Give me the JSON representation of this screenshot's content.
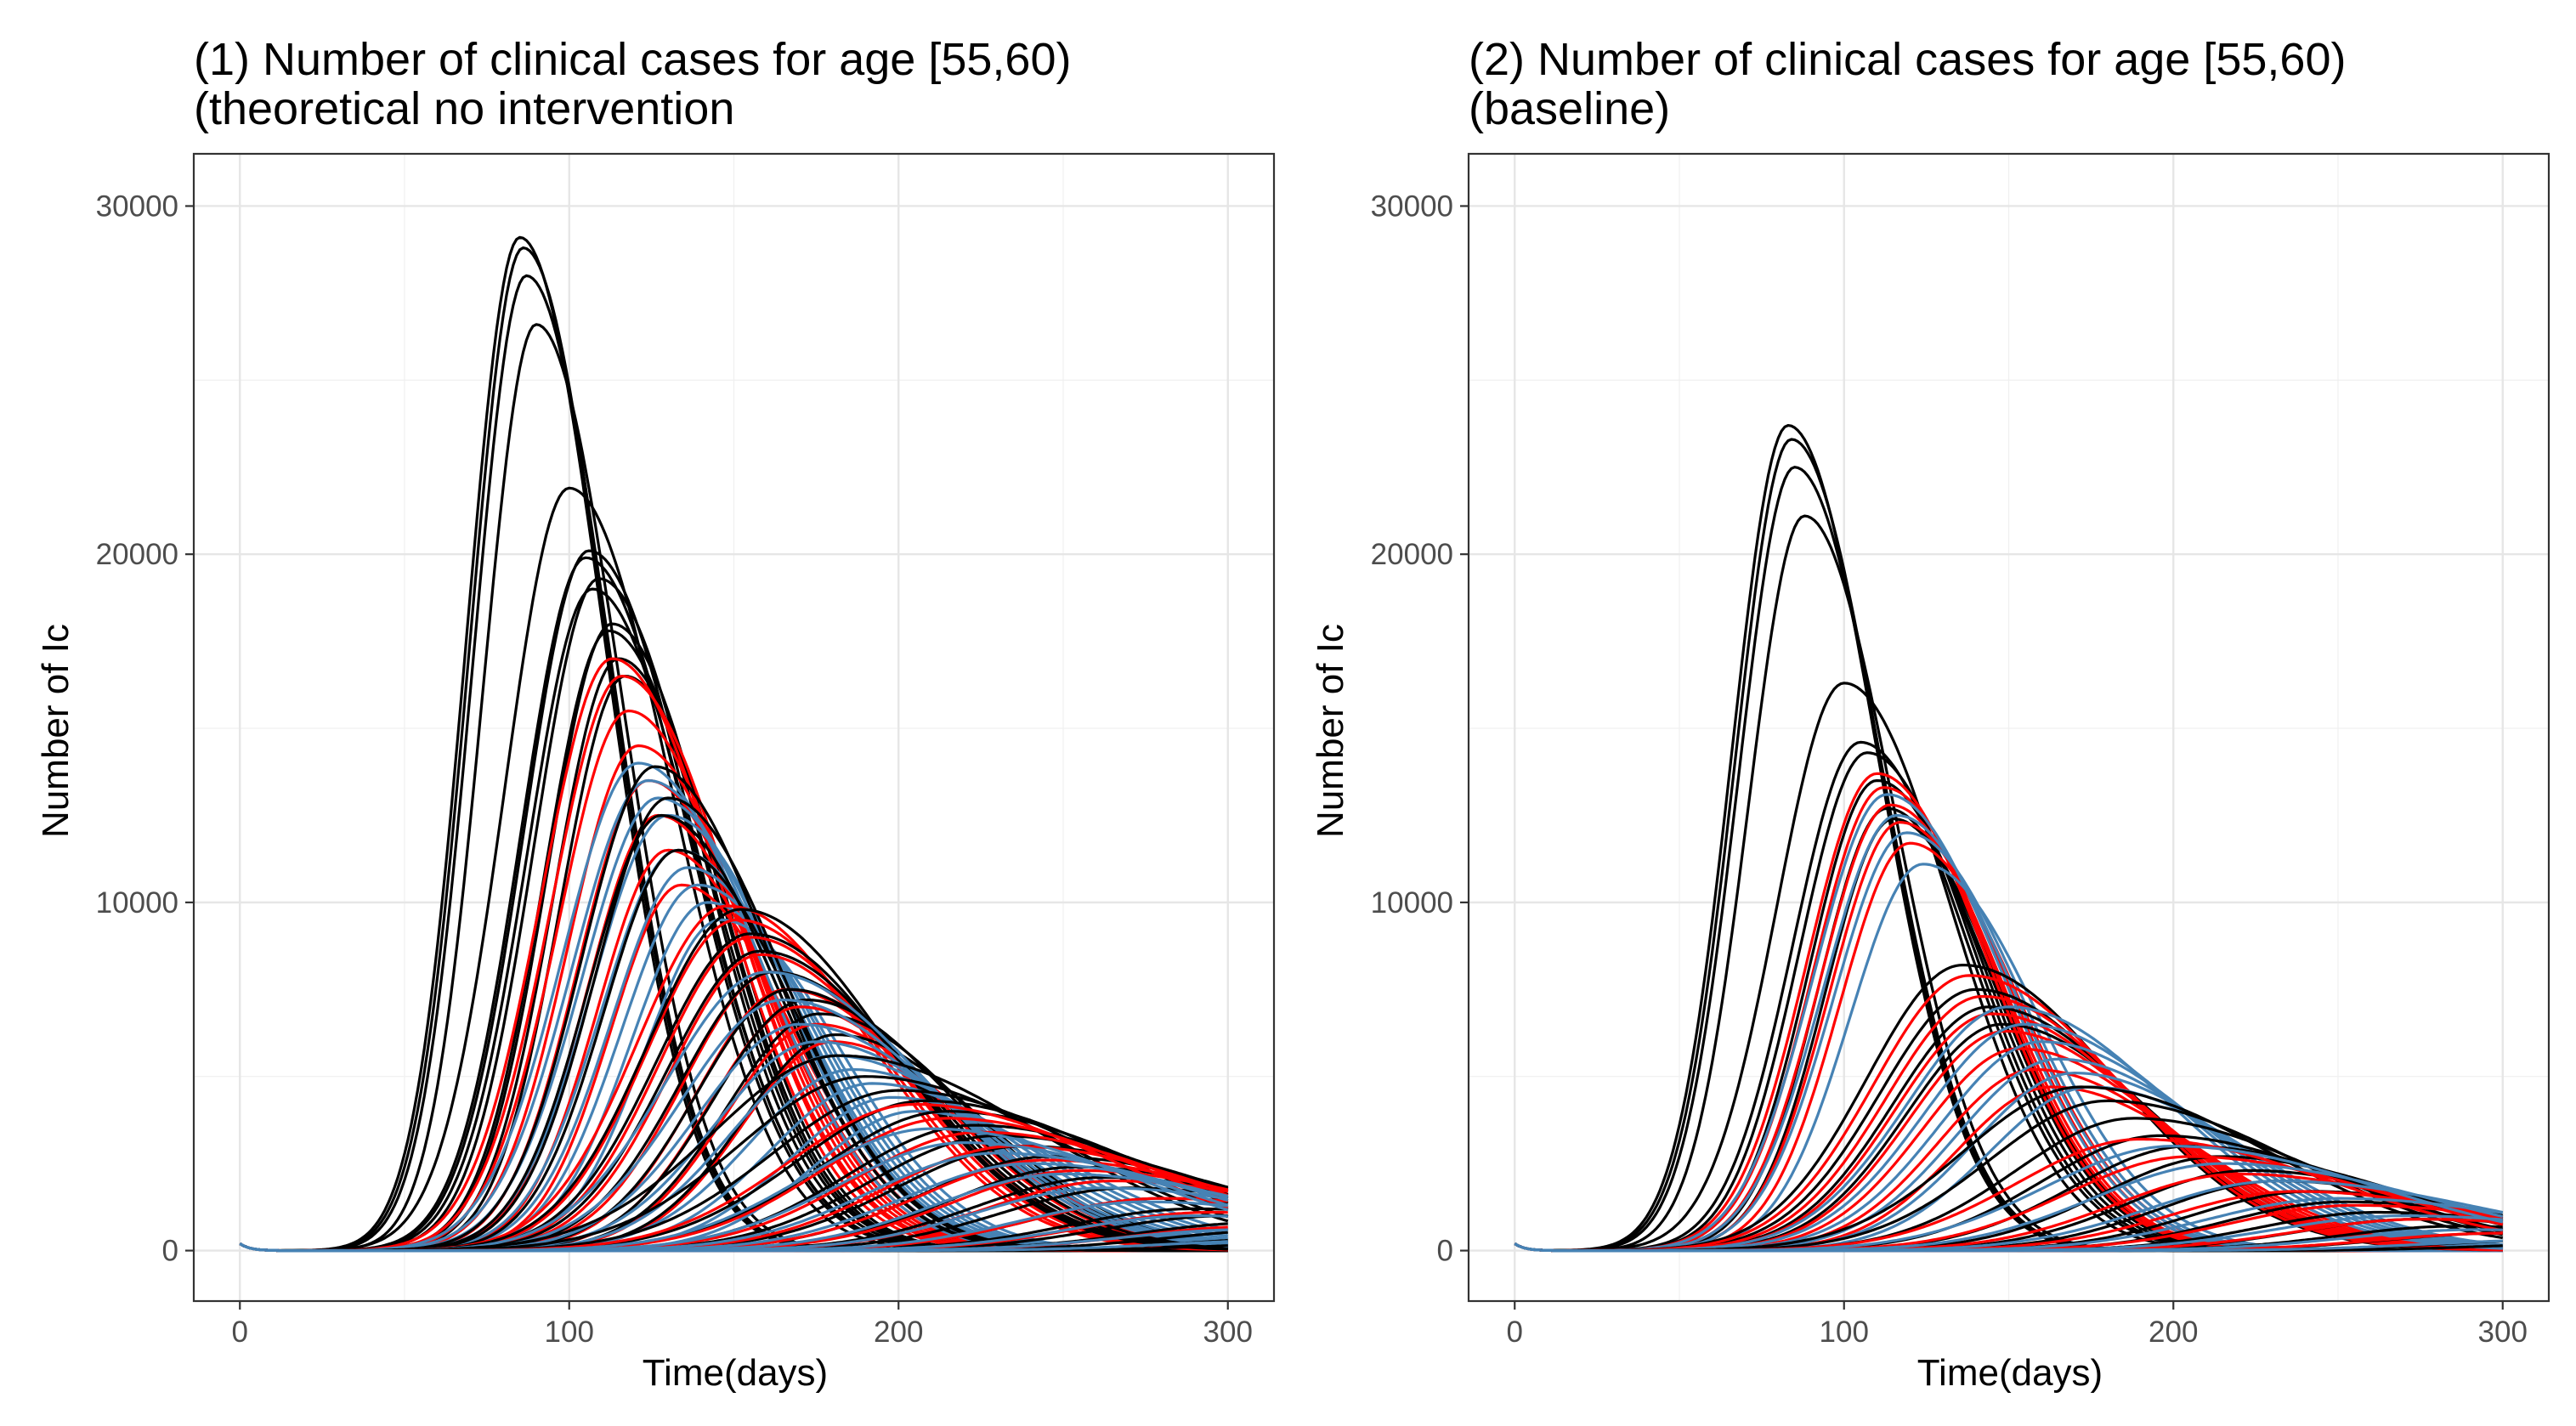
{
  "chart_data": [
    {
      "type": "line",
      "title_line1": "(1) Number of clinical cases for age [55,60)",
      "title_line2": "(theoretical no intervention",
      "xlabel": "Time(days)",
      "ylabel": "Number of Ic",
      "xlim": [
        -14,
        314
      ],
      "ylim": [
        -1450,
        31500
      ],
      "x_ticks": [
        0,
        100,
        200,
        300
      ],
      "y_ticks": [
        0,
        10000,
        20000,
        30000
      ],
      "grid": true,
      "legend": "none",
      "colors": {
        "black": "#000000",
        "red": "#ff0000",
        "blue": "#4682b4"
      },
      "approx_curve_params": {
        "groups": [
          {
            "color": "black",
            "peaks": [
              29100,
              28800,
              28000,
              26600
            ],
            "peak_days": [
              85,
              86,
              87,
              90
            ],
            "width": 19
          },
          {
            "color": "black",
            "peaks": [
              21900,
              20100,
              19900,
              19300,
              19000,
              18000,
              17800,
              17000,
              16500
            ],
            "peak_days": [
              100,
              106,
              105,
              109,
              107,
              113,
              112,
              115,
              117
            ],
            "width": 23
          },
          {
            "color": "red",
            "peaks": [
              17000,
              16500,
              15500,
              14500,
              13500,
              12500,
              11500,
              10500
            ],
            "peak_days": [
              113,
              116,
              118,
              121,
              124,
              127,
              130,
              134
            ],
            "width": 25
          },
          {
            "color": "blue",
            "peaks": [
              14000,
              13500,
              13000,
              12500,
              11500,
              11000,
              10500,
              10000,
              9500
            ],
            "peak_days": [
              121,
              124,
              127,
              130,
              133,
              136,
              139,
              142,
              146
            ],
            "width": 27
          },
          {
            "color": "black",
            "peaks": [
              13900,
              13000,
              12500,
              11500
            ],
            "peak_days": [
              126,
              130,
              128,
              133
            ],
            "width": 26
          },
          {
            "color": "red",
            "peaks": [
              9900,
              9500,
              9000,
              8500,
              8000,
              7500,
              7000,
              6500,
              6000
            ],
            "peak_days": [
              148,
              151,
              155,
              158,
              162,
              166,
              170,
              175,
              180
            ],
            "width": 32
          },
          {
            "color": "black",
            "peaks": [
              9800,
              9100,
              8600,
              8000,
              7500,
              7200,
              6800,
              6200
            ],
            "peak_days": [
              152,
              155,
              158,
              162,
              167,
              172,
              176,
              181
            ],
            "width": 33
          },
          {
            "color": "blue",
            "peaks": [
              8000,
              7200,
              6500,
              6000,
              5600,
              5200,
              4800,
              4400,
              4000
            ],
            "peak_days": [
              160,
              165,
              170,
              175,
              180,
              186,
              192,
              198,
              205
            ],
            "width": 36
          },
          {
            "color": "black",
            "peaks": [
              5600,
              5000,
              4600,
              4300,
              4000,
              3600,
              3300,
              3000,
              2700,
              2400,
              2100,
              1800,
              1500,
              1200,
              1000,
              800,
              600,
              400,
              250
            ],
            "peak_days": [
              182,
              190,
              200,
              208,
              215,
              223,
              230,
              238,
              246,
              254,
              262,
              270,
              280,
              290,
              300,
              310,
              320,
              330,
              340
            ],
            "width": 45
          },
          {
            "color": "red",
            "peaks": [
              4200,
              3800,
              3400,
              3000,
              2600,
              2300,
              2000,
              1500,
              1100,
              700
            ],
            "peak_days": [
              205,
              215,
              225,
              235,
              245,
              255,
              265,
              280,
              295,
              310
            ],
            "width": 45
          },
          {
            "color": "blue",
            "peaks": [
              3500,
              3100,
              2800,
              2500,
              2200,
              1800,
              1400,
              1000,
              600,
              300
            ],
            "peak_days": [
              210,
              220,
              230,
              240,
              250,
              262,
              275,
              290,
              305,
              320
            ],
            "width": 45
          }
        ]
      }
    },
    {
      "type": "line",
      "title_line1": "(2) Number of clinical cases for age [55,60)",
      "title_line2": "(baseline)",
      "xlabel": "Time(days)",
      "ylabel": "Number of Ic",
      "xlim": [
        -14,
        314
      ],
      "ylim": [
        -1450,
        31500
      ],
      "x_ticks": [
        0,
        100,
        200,
        300
      ],
      "y_ticks": [
        0,
        10000,
        20000,
        30000
      ],
      "grid": true,
      "legend": "none",
      "colors": {
        "black": "#000000",
        "red": "#ff0000",
        "blue": "#4682b4"
      },
      "approx_curve_params": {
        "groups": [
          {
            "color": "black",
            "peaks": [
              23700,
              23300,
              22500,
              21100
            ],
            "peak_days": [
              83,
              84,
              85,
              88
            ],
            "width": 20
          },
          {
            "color": "black",
            "peaks": [
              16300,
              14600,
              14300,
              13500,
              12700,
              12400
            ],
            "peak_days": [
              100,
              105,
              107,
              110,
              113,
              115
            ],
            "width": 24
          },
          {
            "color": "red",
            "peaks": [
              13700,
              13300,
              12800,
              12300,
              11700
            ],
            "peak_days": [
              110,
              112,
              114,
              117,
              120
            ],
            "width": 25
          },
          {
            "color": "blue",
            "peaks": [
              13100,
              12500,
              12000,
              11100
            ],
            "peak_days": [
              113,
              116,
              119,
              124
            ],
            "width": 26
          },
          {
            "color": "black",
            "peaks": [
              8200,
              7500,
              7000,
              6500
            ],
            "peak_days": [
              136,
              140,
              144,
              148
            ],
            "width": 34
          },
          {
            "color": "red",
            "peaks": [
              7900,
              7300,
              6800,
              6300,
              5800,
              5200,
              4700
            ],
            "peak_days": [
              138,
              142,
              145,
              149,
              153,
              158,
              163
            ],
            "width": 34
          },
          {
            "color": "blue",
            "peaks": [
              7000,
              6500,
              6000,
              5500,
              5100,
              4700
            ],
            "peak_days": [
              150,
              155,
              160,
              165,
              170,
              175
            ],
            "width": 36
          },
          {
            "color": "black",
            "peaks": [
              4700,
              4300,
              3800,
              3300,
              3000,
              2700,
              2300,
              2000,
              1700,
              1400,
              1100,
              900,
              700,
              500,
              300,
              200
            ],
            "peak_days": [
              172,
              180,
              188,
              196,
              205,
              214,
              223,
              232,
              242,
              252,
              262,
              274,
              286,
              300,
              315,
              330
            ],
            "width": 42
          },
          {
            "color": "red",
            "peaks": [
              3200,
              2700,
              2200,
              1700,
              1300,
              900,
              500
            ],
            "peak_days": [
              190,
              205,
              220,
              237,
              255,
              275,
              300
            ],
            "width": 44
          },
          {
            "color": "blue",
            "peaks": [
              3000,
              2500,
              2000,
              1500,
              1000,
              600,
              300
            ],
            "peak_days": [
              200,
              215,
              232,
              250,
              270,
              292,
              315
            ],
            "width": 46
          }
        ]
      }
    }
  ]
}
